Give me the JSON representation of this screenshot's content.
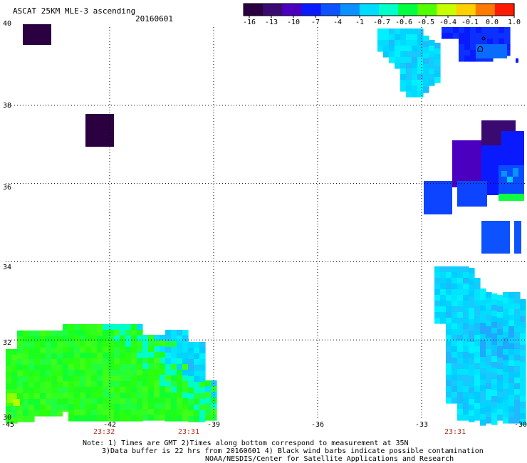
{
  "header": {
    "title": "ASCAT 25KM MLE-3 ascending",
    "date": "20160601"
  },
  "colorbar": {
    "labels": [
      "-16",
      "-13",
      "-10",
      "-7",
      "-4",
      "-1",
      "-0.7",
      "-0.6",
      "-0.5",
      "-0.4",
      "-0.1",
      "0.0",
      "1.0"
    ],
    "colors": [
      "#2a0040",
      "#3a0a70",
      "#4b00c0",
      "#0a1aff",
      "#0c52ff",
      "#0a90ff",
      "#00dcff",
      "#00ffc8",
      "#00ff40",
      "#50ff00",
      "#c8ff00",
      "#ffd000",
      "#ff7a00",
      "#ff1a00"
    ]
  },
  "map": {
    "lon_labels": [
      "-45",
      "-42",
      "-39",
      "-36",
      "-33",
      "-30"
    ],
    "lat_labels": [
      "40",
      "38",
      "36",
      "34",
      "32",
      "30"
    ],
    "time_labels": [
      "23:32",
      "23:31",
      "23:31"
    ]
  },
  "footer": {
    "note_line1": "Note: 1) Times are GMT 2)Times along bottom correspond to measurement at 35N",
    "note_line2": "3)Data buffer is 22 hrs from 20160601 4) Black wind barbs indicate possible contamination",
    "credit": "NOAA/NESDIS/Center for Satellite Applications and Research"
  }
}
